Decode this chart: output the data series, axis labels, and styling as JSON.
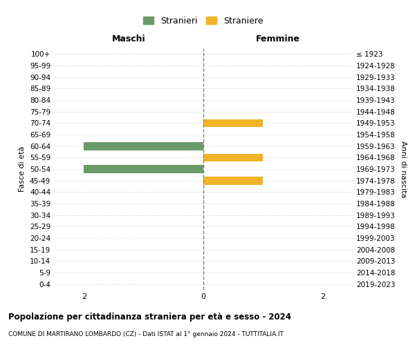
{
  "age_groups": [
    "0-4",
    "5-9",
    "10-14",
    "15-19",
    "20-24",
    "25-29",
    "30-34",
    "35-39",
    "40-44",
    "45-49",
    "50-54",
    "55-59",
    "60-64",
    "65-69",
    "70-74",
    "75-79",
    "80-84",
    "85-89",
    "90-94",
    "95-99",
    "100+"
  ],
  "birth_years": [
    "2019-2023",
    "2014-2018",
    "2009-2013",
    "2004-2008",
    "1999-2003",
    "1994-1998",
    "1989-1993",
    "1984-1988",
    "1979-1983",
    "1974-1978",
    "1969-1973",
    "1964-1968",
    "1959-1963",
    "1954-1958",
    "1949-1953",
    "1944-1948",
    "1939-1943",
    "1934-1938",
    "1929-1933",
    "1924-1928",
    "≤ 1923"
  ],
  "males": [
    0,
    0,
    0,
    0,
    0,
    0,
    0,
    0,
    0,
    0,
    2,
    0,
    2,
    0,
    0,
    0,
    0,
    0,
    0,
    0,
    0
  ],
  "females": [
    0,
    0,
    0,
    0,
    0,
    0,
    0,
    0,
    0,
    1,
    0,
    1,
    0,
    0,
    1,
    0,
    0,
    0,
    0,
    0,
    0
  ],
  "male_color": "#6a9a6a",
  "female_color": "#f0b429",
  "xlim": 2.5,
  "xticks": [
    -2,
    0,
    2
  ],
  "xlabel_left": "Maschi",
  "xlabel_right": "Femmine",
  "ylabel_left": "Fasce di età",
  "ylabel_right": "Anni di nascita",
  "legend_male": "Stranieri",
  "legend_female": "Straniere",
  "title": "Popolazione per cittadinanza straniera per età e sesso - 2024",
  "subtitle": "COMUNE DI MARTIRANO LOMBARDO (CZ) - Dati ISTAT al 1° gennaio 2024 - TUTTITALIA.IT",
  "background_color": "#ffffff",
  "grid_color": "#cccccc",
  "bar_height": 0.7,
  "center_line_color": "#888855",
  "center_line_style": "--"
}
